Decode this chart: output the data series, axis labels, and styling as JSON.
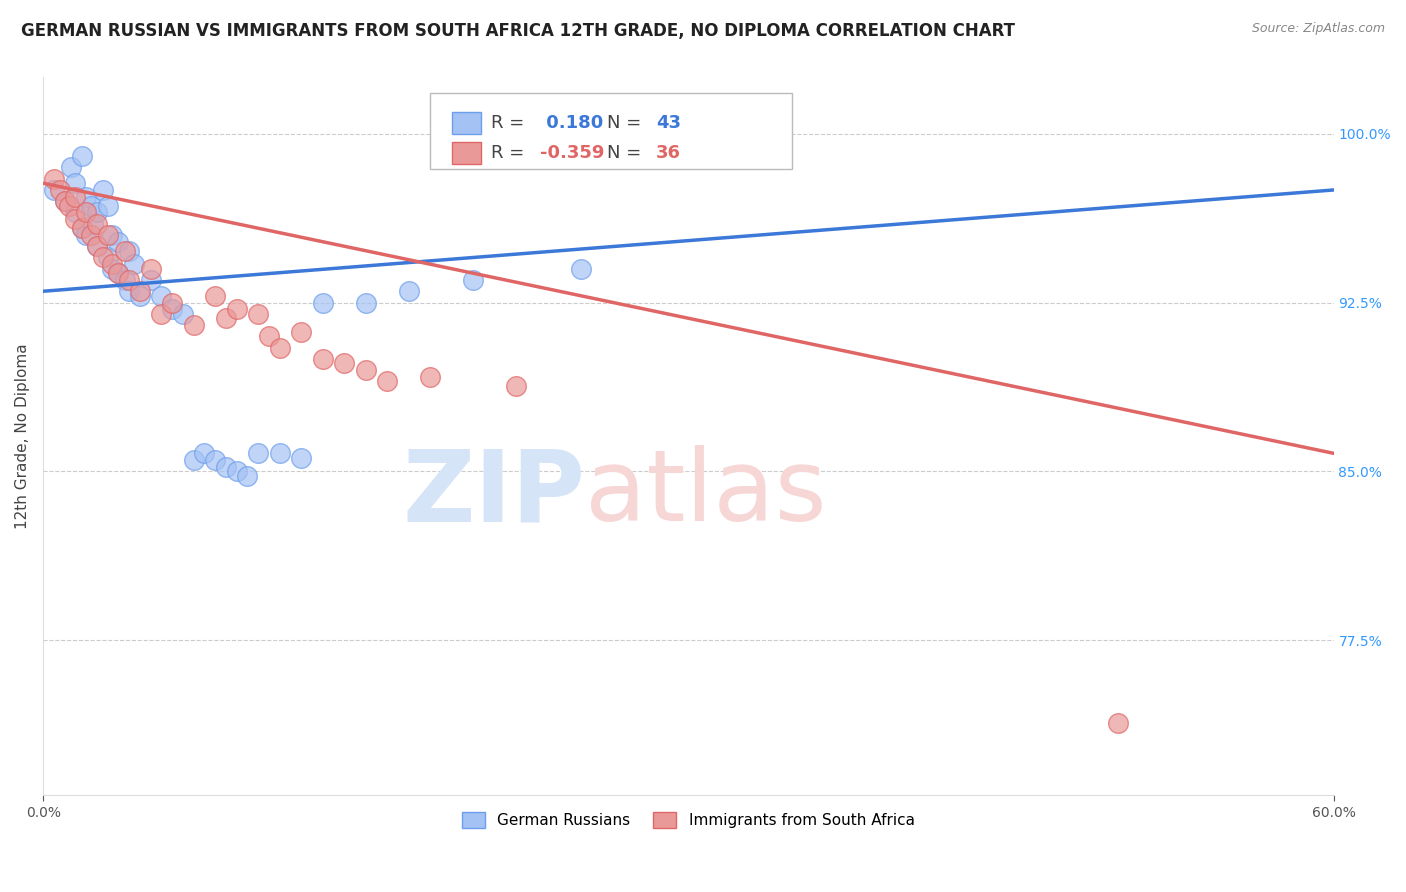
{
  "title": "GERMAN RUSSIAN VS IMMIGRANTS FROM SOUTH AFRICA 12TH GRADE, NO DIPLOMA CORRELATION CHART",
  "source": "Source: ZipAtlas.com",
  "ylabel": "12th Grade, No Diploma",
  "x_min": 0.0,
  "x_max": 0.6,
  "y_min": 0.706,
  "y_max": 1.025,
  "blue_R": 0.18,
  "blue_N": 43,
  "pink_R": -0.359,
  "pink_N": 36,
  "blue_color": "#a4c2f4",
  "pink_color": "#ea9999",
  "blue_edge_color": "#6d9eeb",
  "pink_edge_color": "#e06666",
  "blue_line_color": "#3c78d8",
  "pink_line_color": "#e06666",
  "watermark_zip_color": "#d6e4f7",
  "watermark_atlas_color": "#f7d6d6",
  "grid_color": "#cccccc",
  "bg_color": "#ffffff",
  "title_fontsize": 12,
  "axis_fontsize": 11,
  "tick_fontsize": 10,
  "y_ticks": [
    0.775,
    0.85,
    0.925,
    1.0
  ],
  "y_tick_labels": [
    "77.5%",
    "85.0%",
    "92.5%",
    "100.0%"
  ],
  "blue_scatter_x": [
    0.005,
    0.01,
    0.013,
    0.015,
    0.015,
    0.018,
    0.018,
    0.02,
    0.02,
    0.022,
    0.023,
    0.025,
    0.025,
    0.028,
    0.03,
    0.03,
    0.032,
    0.032,
    0.035,
    0.035,
    0.038,
    0.04,
    0.04,
    0.042,
    0.045,
    0.05,
    0.055,
    0.06,
    0.065,
    0.07,
    0.075,
    0.08,
    0.085,
    0.09,
    0.095,
    0.1,
    0.11,
    0.12,
    0.13,
    0.15,
    0.17,
    0.2,
    0.25
  ],
  "blue_scatter_y": [
    0.975,
    0.97,
    0.985,
    0.978,
    0.965,
    0.99,
    0.958,
    0.972,
    0.955,
    0.968,
    0.96,
    0.965,
    0.95,
    0.975,
    0.968,
    0.945,
    0.955,
    0.94,
    0.952,
    0.938,
    0.935,
    0.948,
    0.93,
    0.942,
    0.928,
    0.935,
    0.928,
    0.922,
    0.92,
    0.855,
    0.858,
    0.855,
    0.852,
    0.85,
    0.848,
    0.858,
    0.858,
    0.856,
    0.925,
    0.925,
    0.93,
    0.935,
    0.94
  ],
  "pink_scatter_x": [
    0.005,
    0.008,
    0.01,
    0.012,
    0.015,
    0.015,
    0.018,
    0.02,
    0.022,
    0.025,
    0.025,
    0.028,
    0.03,
    0.032,
    0.035,
    0.038,
    0.04,
    0.045,
    0.05,
    0.055,
    0.06,
    0.07,
    0.08,
    0.085,
    0.09,
    0.1,
    0.105,
    0.11,
    0.12,
    0.13,
    0.14,
    0.15,
    0.16,
    0.18,
    0.22,
    0.5
  ],
  "pink_scatter_y": [
    0.98,
    0.975,
    0.97,
    0.968,
    0.972,
    0.962,
    0.958,
    0.965,
    0.955,
    0.96,
    0.95,
    0.945,
    0.955,
    0.942,
    0.938,
    0.948,
    0.935,
    0.93,
    0.94,
    0.92,
    0.925,
    0.915,
    0.928,
    0.918,
    0.922,
    0.92,
    0.91,
    0.905,
    0.912,
    0.9,
    0.898,
    0.895,
    0.89,
    0.892,
    0.888,
    0.738
  ],
  "blue_line_x": [
    0.0,
    0.6
  ],
  "blue_line_y": [
    0.93,
    0.975
  ],
  "pink_line_x": [
    0.0,
    0.6
  ],
  "pink_line_y": [
    0.978,
    0.858
  ]
}
